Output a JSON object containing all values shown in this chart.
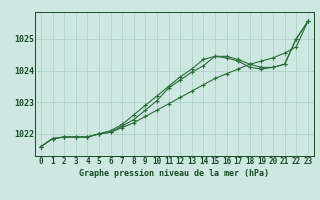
{
  "title": "Graphe pression niveau de la mer (hPa)",
  "hours": [
    0,
    1,
    2,
    3,
    4,
    5,
    6,
    7,
    8,
    9,
    10,
    11,
    12,
    13,
    14,
    15,
    16,
    17,
    18,
    19,
    20,
    21,
    22,
    23
  ],
  "line_a": [
    1021.6,
    1021.85,
    1021.9,
    1021.9,
    1021.9,
    1022.0,
    1022.05,
    1022.2,
    1022.35,
    1022.55,
    1022.75,
    1022.95,
    1023.15,
    1023.35,
    1023.55,
    1023.75,
    1023.9,
    1024.05,
    1024.2,
    1024.3,
    1024.4,
    1024.55,
    1024.75,
    1025.55
  ],
  "line_b": [
    1021.6,
    1021.85,
    1021.9,
    1021.9,
    1021.9,
    1022.0,
    1022.05,
    1022.25,
    1022.45,
    1022.75,
    1023.05,
    1023.45,
    1023.7,
    1023.95,
    1024.15,
    1024.45,
    1024.45,
    1024.35,
    1024.2,
    1024.1,
    1024.1,
    1024.2,
    1025.0,
    1025.55
  ],
  "line_c": [
    1021.6,
    1021.85,
    1021.9,
    1021.9,
    1021.9,
    1022.0,
    1022.1,
    1022.3,
    1022.6,
    1022.9,
    1023.2,
    1023.5,
    1023.8,
    1024.05,
    1024.35,
    1024.45,
    1024.4,
    1024.3,
    1024.1,
    1024.05,
    1024.1,
    1024.2,
    1025.0,
    1025.55
  ],
  "bg_color": "#cce8e0",
  "line_color": "#2d6b3c",
  "grid_color": "#a8cfc4",
  "label_color": "#1a4a2a",
  "yticks": [
    1022,
    1023,
    1024,
    1025
  ],
  "ylim": [
    1021.3,
    1025.85
  ],
  "xlim": [
    -0.5,
    23.5
  ],
  "title_fontsize": 6.0,
  "tick_fontsize": 5.5
}
